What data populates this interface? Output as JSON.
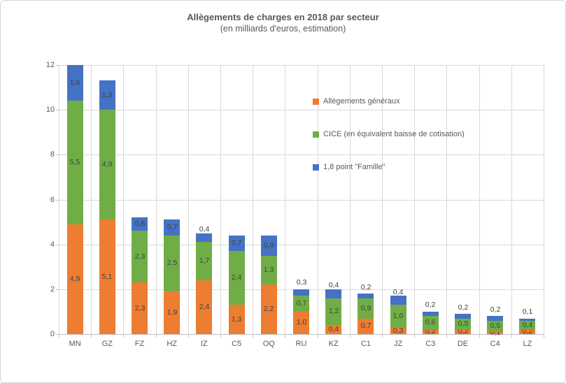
{
  "chart_data": {
    "type": "bar",
    "stacked": true,
    "title": "Allègements de charges en 2018 par secteur",
    "subtitle": "(en milliards d'euros, estimation)",
    "categories": [
      "MN",
      "GZ",
      "FZ",
      "HZ",
      "IZ",
      "C5",
      "OQ",
      "RU",
      "KZ",
      "C1",
      "JZ",
      "C3",
      "DE",
      "C4",
      "LZ"
    ],
    "series": [
      {
        "name": "Allègements généraux",
        "color": "#ED7D31",
        "values": [
          4.9,
          5.1,
          2.3,
          1.9,
          2.4,
          1.3,
          2.2,
          1.0,
          0.4,
          0.7,
          0.3,
          0.2,
          0.2,
          0.1,
          0.2
        ]
      },
      {
        "name": "CICE (en équivalent baisse de cotisation)",
        "color": "#70AD47",
        "values": [
          5.5,
          4.9,
          2.3,
          2.5,
          1.7,
          2.4,
          1.3,
          0.7,
          1.2,
          0.9,
          1.0,
          0.6,
          0.5,
          0.5,
          0.4
        ]
      },
      {
        "name": "1,8 point \"Famille\"",
        "color": "#4472C4",
        "values": [
          1.6,
          1.3,
          0.6,
          0.7,
          0.4,
          0.7,
          0.9,
          0.3,
          0.4,
          0.2,
          0.4,
          0.2,
          0.2,
          0.2,
          0.1
        ]
      }
    ],
    "xlabel": "",
    "ylabel": "",
    "ylim": [
      0,
      12
    ],
    "yticks": [
      0,
      2,
      4,
      6,
      8,
      10,
      12
    ],
    "grid": true,
    "legend_position": "inside-upper-right",
    "decimal_separator": ",",
    "colors": {
      "grid": "#d9d9d9",
      "axis_line": "#bfbfbf",
      "axis_text": "#595959",
      "data_label": "#404040",
      "title_text": "#595959"
    }
  }
}
